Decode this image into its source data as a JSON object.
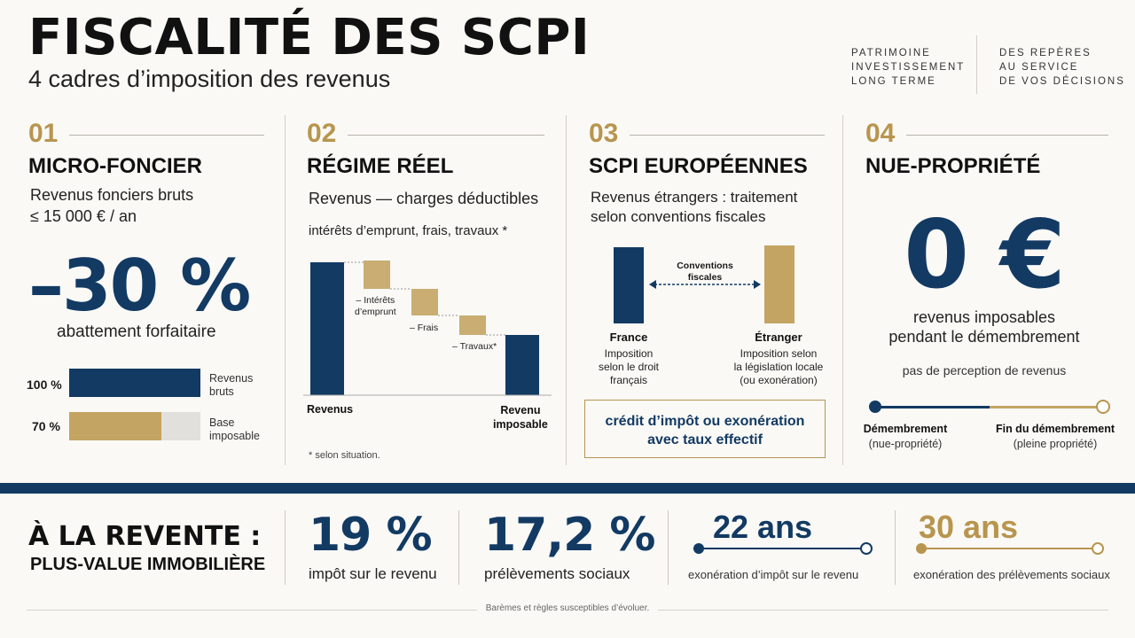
{
  "header": {
    "title": "FISCALITÉ DES SCPI",
    "subtitle": "4 cadres d’imposition des revenus",
    "tag_left": [
      "PATRIMOINE",
      "INVESTISSEMENT",
      "LONG TERME"
    ],
    "tag_right": [
      "DES REPÈRES",
      "AU SERVICE",
      "DE VOS DÉCISIONS"
    ]
  },
  "col1": {
    "num": "01",
    "heading": "MICRO-FONCIER",
    "line1": "Revenus fonciers bruts",
    "line2": "≤ 15 000 € / an",
    "big": "–30 %",
    "caption": "abattement forfaitaire",
    "bars": [
      {
        "pct_label": "100 %",
        "label1": "Revenus",
        "label2": "bruts",
        "value": 100
      },
      {
        "pct_label": "70 %",
        "label1": "Base",
        "label2": "imposable",
        "value": 70
      }
    ]
  },
  "col2": {
    "num": "02",
    "heading": "RÉGIME RÉEL",
    "line1": "Revenus — charges déductibles",
    "line2": "intérêts d’emprunt, frais, travaux *",
    "steps": [
      "– Intérêts",
      "d’emprunt",
      "– Frais",
      "– Travaux*"
    ],
    "start_label": "Revenus",
    "end_label1": "Revenu",
    "end_label2": "imposable",
    "footnote": "* selon situation."
  },
  "col3": {
    "num": "03",
    "heading": "SCPI EUROPÉENNES",
    "line1": "Revenus étrangers : traitement",
    "line2": "selon conventions fiscales",
    "arrow1": "Conventions",
    "arrow2": "fiscales",
    "france": "France",
    "france_desc": [
      "Imposition",
      "selon le droit",
      "français"
    ],
    "etranger": "Étranger",
    "etranger_desc": [
      "Imposition selon",
      "la législation locale",
      "(ou exonération)"
    ],
    "box1": "crédit d’impôt ou exonération",
    "box2": "avec taux effectif"
  },
  "col4": {
    "num": "04",
    "heading": "NUE-PROPRIÉTÉ",
    "big": "0 €",
    "cap1": "revenus imposables",
    "cap2": "pendant le démembrement",
    "note": "pas de perception de revenus",
    "left_label": "Démembrement",
    "left_sub": "(nue-propriété)",
    "right_label": "Fin du démembrement",
    "right_sub": "(pleine propriété)"
  },
  "bottom": {
    "title1": "À LA REVENTE :",
    "title2": "PLUS-VALUE IMMOBILIÈRE",
    "s1_value": "19 %",
    "s1_label": "impôt sur le revenu",
    "s2_value": "17,2 %",
    "s2_label": "prélèvements sociaux",
    "s3_value": "22 ans",
    "s3_label": "exonération d’impôt sur le revenu",
    "s4_value": "30 ans",
    "s4_label": "exonération des prélèvements sociaux",
    "footer": "Barèmes et règles susceptibles d’évoluer."
  },
  "colors": {
    "navy": "#123a63",
    "gold": "#b8954e",
    "grey": "#e2e0dc"
  }
}
